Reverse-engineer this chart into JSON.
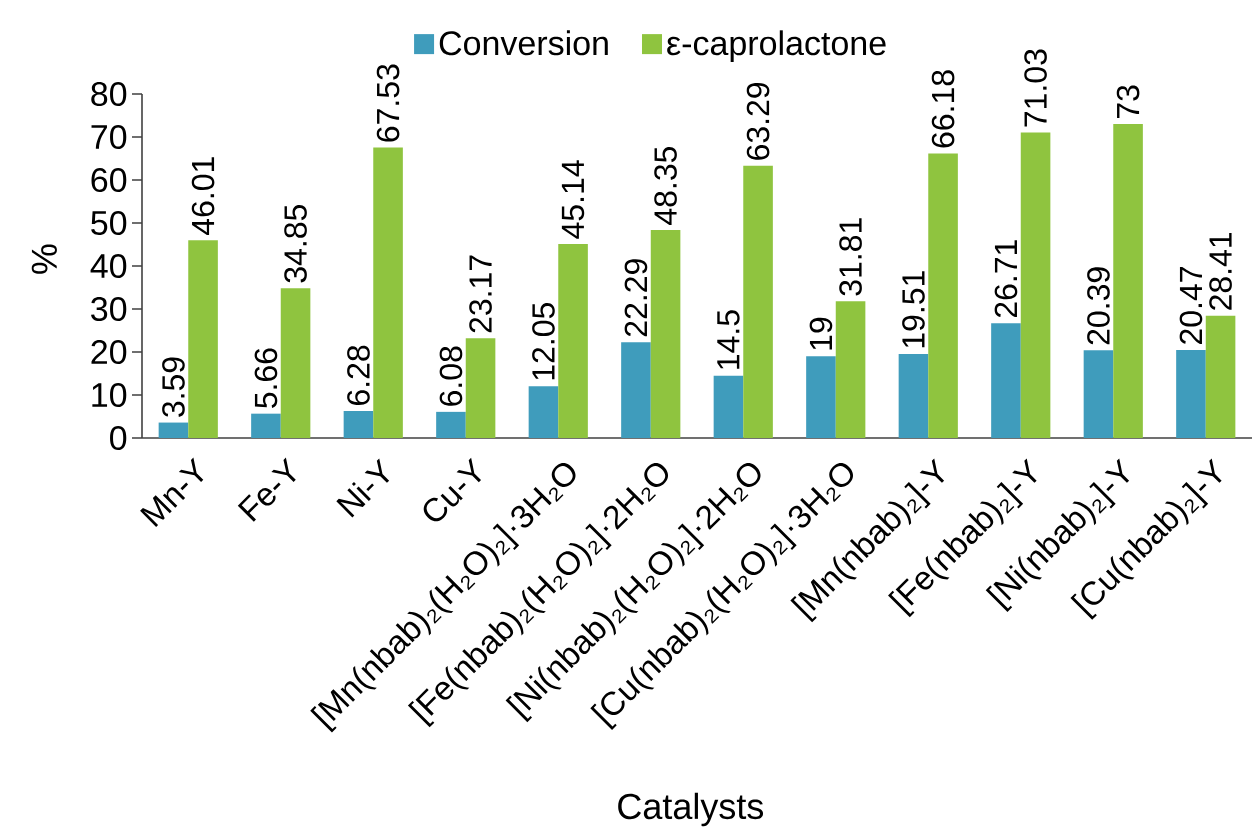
{
  "chart_data": {
    "type": "bar",
    "xlabel": "Catalysts",
    "ylabel": "%",
    "categories": [
      "Mn-Y",
      "Fe-Y",
      "Ni-Y",
      "Cu-Y",
      "[Mn(nbab)₂(H₂O)₂]·3H₂O",
      "[Fe(nbab)₂(H₂O)₂]·2H₂O",
      "[Ni(nbab)₂(H₂O)₂]·2H₂O",
      "[Cu(nbab)₂(H₂O)₂]·3H₂O",
      "[Mn(nbab)₂]-Y",
      "[Fe(nbab)₂]-Y",
      "[Ni(nbab)₂]-Y",
      "[Cu(nbab)₂]-Y"
    ],
    "series": [
      {
        "name": "Conversion",
        "color": "#3f9cbc",
        "values": [
          3.59,
          5.66,
          6.28,
          6.08,
          12.05,
          22.29,
          14.5,
          19,
          19.51,
          26.71,
          20.39,
          20.47
        ]
      },
      {
        "name": "ε-caprolactone",
        "color": "#8fc43f",
        "values": [
          46.01,
          34.85,
          67.53,
          23.17,
          45.14,
          48.35,
          63.29,
          31.81,
          66.18,
          71.03,
          73,
          28.41
        ]
      }
    ],
    "ylim": [
      0,
      80
    ],
    "yticks": [
      0,
      10,
      20,
      30,
      40,
      50,
      60,
      70,
      80
    ],
    "data_labels": true,
    "legend": "top"
  }
}
